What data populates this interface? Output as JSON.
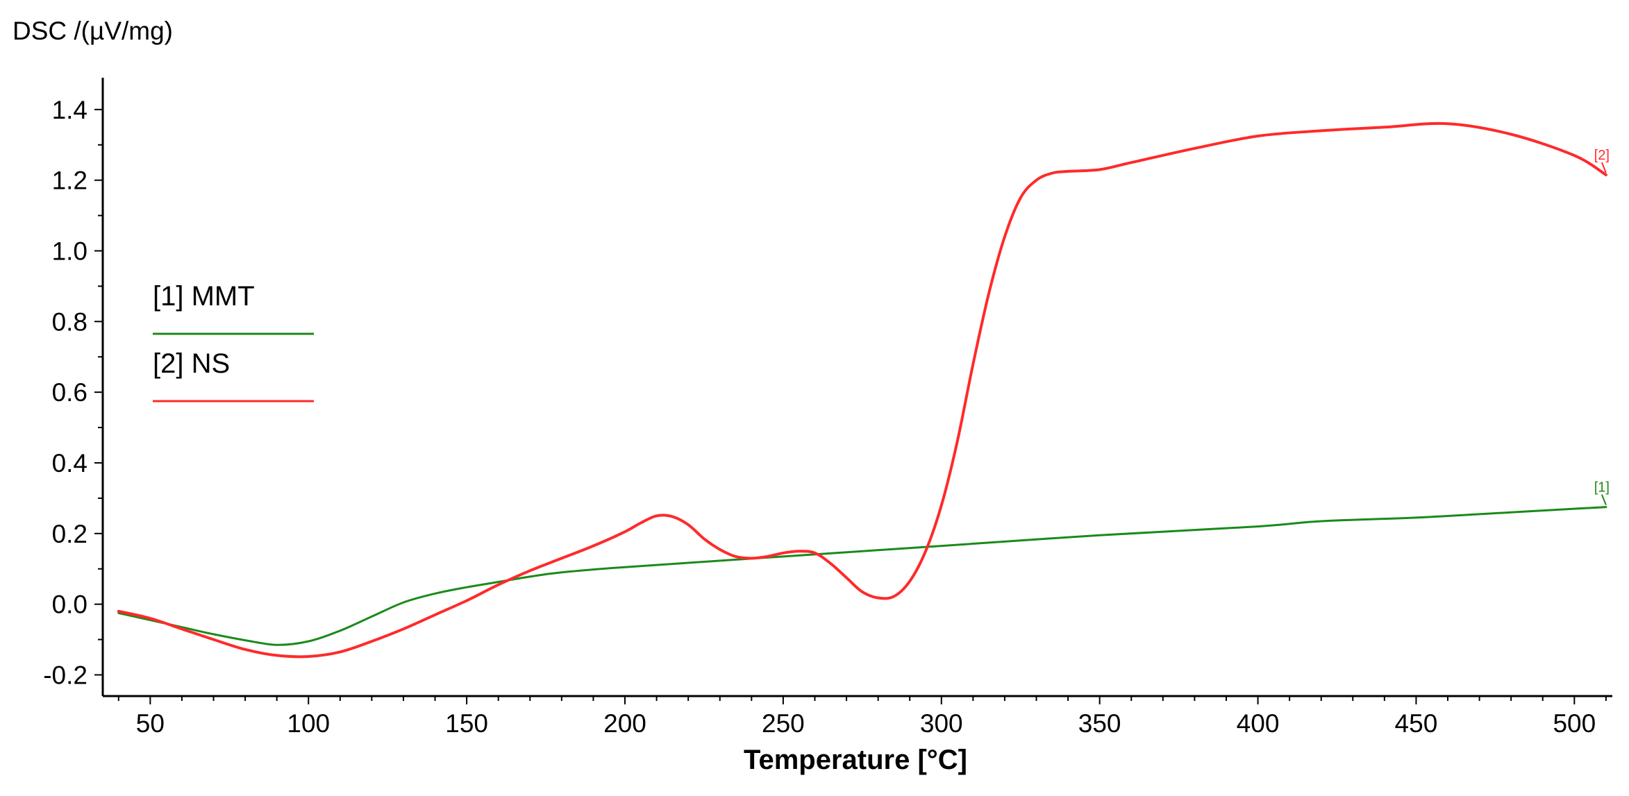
{
  "chart_data": {
    "type": "line",
    "title": "",
    "xlabel": "Temperature [°C]",
    "ylabel": "DSC /(µV/mg)",
    "xlim": [
      35,
      512
    ],
    "ylim": [
      -0.26,
      1.49
    ],
    "x_ticks": [
      50,
      100,
      150,
      200,
      250,
      300,
      350,
      400,
      450,
      500
    ],
    "x_tick_labels": [
      "50",
      "100",
      "150",
      "200",
      "250",
      "300",
      "350",
      "400",
      "450",
      "500"
    ],
    "y_ticks": [
      -0.2,
      0.0,
      0.2,
      0.4,
      0.6,
      0.8,
      1.0,
      1.2,
      1.4
    ],
    "y_tick_labels": [
      "-0.2",
      "0.0",
      "0.2",
      "0.4",
      "0.6",
      "0.8",
      "1.0",
      "1.2",
      "1.4"
    ],
    "grid": false,
    "legend_position": "left",
    "series": [
      {
        "name": "[1] MMT",
        "end_tag": "[1]",
        "color": "#1a8a1a",
        "x": [
          40,
          50,
          60,
          70,
          80,
          90,
          100,
          110,
          120,
          130,
          140,
          150,
          160,
          170,
          180,
          200,
          250,
          300,
          350,
          400,
          420,
          450,
          480,
          510
        ],
        "y": [
          -0.025,
          -0.045,
          -0.065,
          -0.085,
          -0.102,
          -0.115,
          -0.105,
          -0.075,
          -0.035,
          0.005,
          0.03,
          0.048,
          0.063,
          0.078,
          0.09,
          0.105,
          0.135,
          0.165,
          0.195,
          0.22,
          0.235,
          0.245,
          0.26,
          0.275
        ]
      },
      {
        "name": "[2] NS",
        "end_tag": "[2]",
        "color": "#ff2a2a",
        "x": [
          40,
          50,
          60,
          70,
          80,
          90,
          100,
          110,
          120,
          130,
          140,
          150,
          160,
          170,
          180,
          190,
          200,
          205,
          210,
          215,
          220,
          225,
          230,
          235,
          240,
          245,
          250,
          255,
          260,
          265,
          270,
          275,
          280,
          285,
          290,
          295,
          300,
          305,
          310,
          315,
          320,
          325,
          330,
          335,
          340,
          350,
          360,
          380,
          400,
          420,
          440,
          460,
          480,
          500,
          510
        ],
        "y": [
          -0.02,
          -0.04,
          -0.07,
          -0.1,
          -0.128,
          -0.145,
          -0.148,
          -0.135,
          -0.105,
          -0.07,
          -0.03,
          0.01,
          0.055,
          0.095,
          0.13,
          0.165,
          0.205,
          0.23,
          0.25,
          0.248,
          0.225,
          0.185,
          0.155,
          0.135,
          0.13,
          0.135,
          0.145,
          0.15,
          0.145,
          0.115,
          0.075,
          0.035,
          0.018,
          0.022,
          0.065,
          0.15,
          0.28,
          0.46,
          0.68,
          0.88,
          1.04,
          1.15,
          1.2,
          1.22,
          1.225,
          1.23,
          1.25,
          1.29,
          1.325,
          1.34,
          1.35,
          1.36,
          1.33,
          1.27,
          1.215
        ]
      }
    ]
  }
}
